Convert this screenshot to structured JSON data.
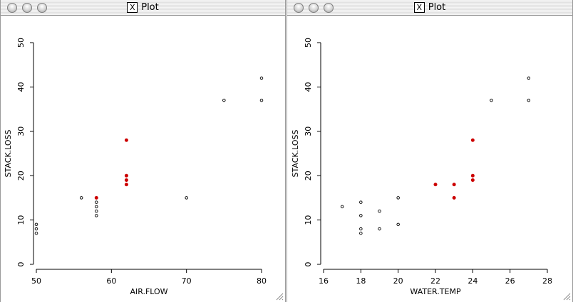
{
  "windows": [
    {
      "title": "Plot",
      "x_icon": "X",
      "chart_data": {
        "type": "scatter",
        "xlabel": "AIR.FLOW",
        "ylabel": "STACK.LOSS",
        "xlim": [
          50,
          80
        ],
        "ylim": [
          0,
          50
        ],
        "xticks": [
          50,
          60,
          70,
          80
        ],
        "yticks": [
          0,
          10,
          20,
          30,
          40,
          50
        ],
        "grid": false,
        "series": [
          {
            "color": "#000000",
            "marker": "open-circle",
            "points": [
              [
                50,
                9
              ],
              [
                50,
                8
              ],
              [
                50,
                7
              ],
              [
                56,
                15
              ],
              [
                58,
                14
              ],
              [
                58,
                13
              ],
              [
                58,
                12
              ],
              [
                58,
                11
              ],
              [
                70,
                15
              ],
              [
                75,
                37
              ],
              [
                80,
                42
              ],
              [
                80,
                37
              ]
            ]
          },
          {
            "color": "#cc0000",
            "marker": "filled-circle",
            "points": [
              [
                58,
                15
              ],
              [
                62,
                28
              ],
              [
                62,
                20
              ],
              [
                62,
                19
              ],
              [
                62,
                18
              ]
            ]
          }
        ]
      }
    },
    {
      "title": "Plot",
      "x_icon": "X",
      "chart_data": {
        "type": "scatter",
        "xlabel": "WATER.TEMP",
        "ylabel": "STACK.LOSS",
        "xlim": [
          16,
          28
        ],
        "ylim": [
          0,
          50
        ],
        "xticks": [
          16,
          18,
          20,
          22,
          24,
          26,
          28
        ],
        "yticks": [
          0,
          10,
          20,
          30,
          40,
          50
        ],
        "grid": false,
        "series": [
          {
            "color": "#000000",
            "marker": "open-circle",
            "points": [
              [
                17,
                13
              ],
              [
                18,
                14
              ],
              [
                18,
                11
              ],
              [
                18,
                8
              ],
              [
                18,
                7
              ],
              [
                19,
                12
              ],
              [
                19,
                8
              ],
              [
                20,
                15
              ],
              [
                20,
                9
              ],
              [
                25,
                37
              ],
              [
                27,
                42
              ],
              [
                27,
                37
              ]
            ]
          },
          {
            "color": "#cc0000",
            "marker": "filled-circle",
            "points": [
              [
                22,
                18
              ],
              [
                23,
                18
              ],
              [
                23,
                15
              ],
              [
                24,
                28
              ],
              [
                24,
                20
              ],
              [
                24,
                19
              ]
            ]
          }
        ]
      }
    }
  ]
}
